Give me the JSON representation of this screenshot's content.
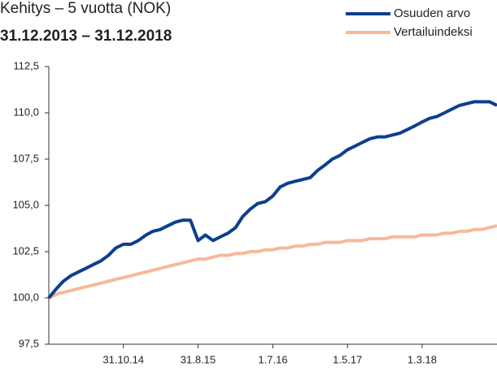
{
  "chart_data": {
    "type": "line",
    "title": "Kehitys – 5 vuotta (NOK)",
    "subtitle": "31.12.2013 – 31.12.2018",
    "x": [
      "2013-12-31",
      "2014-01-31",
      "2014-02-28",
      "2014-03-31",
      "2014-04-30",
      "2014-05-31",
      "2014-06-30",
      "2014-07-31",
      "2014-08-31",
      "2014-09-30",
      "2014-10-31",
      "2014-11-30",
      "2014-12-31",
      "2015-01-31",
      "2015-02-28",
      "2015-03-31",
      "2015-04-30",
      "2015-05-31",
      "2015-06-30",
      "2015-07-31",
      "2015-08-31",
      "2015-09-30",
      "2015-10-31",
      "2015-11-30",
      "2015-12-31",
      "2016-01-31",
      "2016-02-29",
      "2016-03-31",
      "2016-04-30",
      "2016-05-31",
      "2016-06-30",
      "2016-07-31",
      "2016-08-31",
      "2016-09-30",
      "2016-10-31",
      "2016-11-30",
      "2016-12-31",
      "2017-01-31",
      "2017-02-28",
      "2017-03-31",
      "2017-04-30",
      "2017-05-31",
      "2017-06-30",
      "2017-07-31",
      "2017-08-31",
      "2017-09-30",
      "2017-10-31",
      "2017-11-30",
      "2017-12-31",
      "2018-01-31",
      "2018-02-28",
      "2018-03-31",
      "2018-04-30",
      "2018-05-31",
      "2018-06-30",
      "2018-07-31",
      "2018-08-31",
      "2018-09-30",
      "2018-10-31",
      "2018-11-30",
      "2018-12-31"
    ],
    "series": [
      {
        "name": "Osuuden arvo",
        "color": "#0d3f8f",
        "values": [
          100.0,
          100.5,
          100.9,
          101.2,
          101.4,
          101.6,
          101.8,
          102.0,
          102.3,
          102.7,
          102.9,
          102.9,
          103.1,
          103.4,
          103.6,
          103.7,
          103.9,
          104.1,
          104.2,
          104.2,
          103.1,
          103.4,
          103.1,
          103.3,
          103.5,
          103.8,
          104.4,
          104.8,
          105.1,
          105.2,
          105.5,
          106.0,
          106.2,
          106.3,
          106.4,
          106.5,
          106.9,
          107.2,
          107.5,
          107.7,
          108.0,
          108.2,
          108.4,
          108.6,
          108.7,
          108.7,
          108.8,
          108.9,
          109.1,
          109.3,
          109.5,
          109.7,
          109.8,
          110.0,
          110.2,
          110.4,
          110.5,
          110.6,
          110.6,
          110.6,
          110.4
        ]
      },
      {
        "name": "Vertailuindeksi",
        "color": "#f7b99a",
        "values": [
          100.0,
          100.2,
          100.3,
          100.4,
          100.5,
          100.6,
          100.7,
          100.8,
          100.9,
          101.0,
          101.1,
          101.2,
          101.3,
          101.4,
          101.5,
          101.6,
          101.7,
          101.8,
          101.9,
          102.0,
          102.1,
          102.1,
          102.2,
          102.3,
          102.3,
          102.4,
          102.4,
          102.5,
          102.5,
          102.6,
          102.6,
          102.7,
          102.7,
          102.8,
          102.8,
          102.9,
          102.9,
          103.0,
          103.0,
          103.0,
          103.1,
          103.1,
          103.1,
          103.2,
          103.2,
          103.2,
          103.3,
          103.3,
          103.3,
          103.3,
          103.4,
          103.4,
          103.4,
          103.5,
          103.5,
          103.6,
          103.6,
          103.7,
          103.7,
          103.8,
          103.9
        ]
      }
    ],
    "xlim": [
      "2013-12-31",
      "2018-12-31"
    ],
    "xticks": [
      {
        "value": "2014-10-31",
        "label": "31.10.14"
      },
      {
        "value": "2015-08-31",
        "label": "31.8.15"
      },
      {
        "value": "2016-07-01",
        "label": "1.7.16"
      },
      {
        "value": "2017-05-01",
        "label": "1.5.17"
      },
      {
        "value": "2018-03-01",
        "label": "1.3.18"
      }
    ],
    "ylim": [
      97.5,
      112.5
    ],
    "yticks": [
      {
        "value": 97.5,
        "label": "97,5"
      },
      {
        "value": 100.0,
        "label": "100,0"
      },
      {
        "value": 102.5,
        "label": "102,5"
      },
      {
        "value": 105.0,
        "label": "105,0"
      },
      {
        "value": 107.5,
        "label": "107,5"
      },
      {
        "value": 110.0,
        "label": "110,0"
      },
      {
        "value": 112.5,
        "label": "112,5"
      }
    ],
    "legend": "top-right",
    "grid": false
  }
}
